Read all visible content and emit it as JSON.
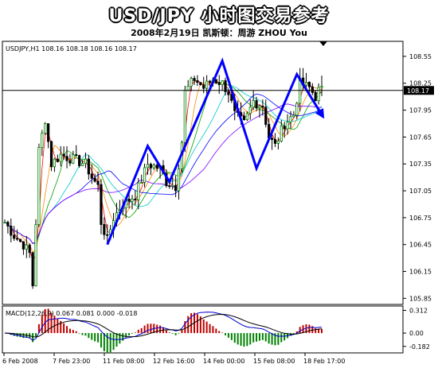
{
  "header": {
    "title": "USD/JPY 小时图交易参考",
    "subtitle": "2008年2月19日   凯斯顿：周游 ZHOU You"
  },
  "chart_data": [
    {
      "type": "candlestick",
      "legend": "USDJPY,H1  108.16 108.18 108.16 108.17",
      "price_label": "108.17",
      "current_price": 108.17,
      "ylim": [
        105.8,
        108.7
      ],
      "y_ticks": [
        "108.55",
        "108.25",
        "107.95",
        "107.65",
        "107.35",
        "107.05",
        "106.75",
        "106.45",
        "106.15",
        "105.85"
      ],
      "x_ticks": [
        "6 Feb 2008",
        "7 Feb 23:00",
        "11 Feb 08:00",
        "12 Feb 16:00",
        "14 Feb 00:00",
        "15 Feb 08:00",
        "18 Feb 17:00"
      ],
      "price_path": [
        [
          0,
          106.7
        ],
        [
          3,
          106.55
        ],
        [
          6,
          106.45
        ],
        [
          8,
          106.35
        ],
        [
          9,
          106.0
        ],
        [
          10,
          106.7
        ],
        [
          11,
          107.5
        ],
        [
          13,
          107.85
        ],
        [
          15,
          107.35
        ],
        [
          18,
          107.45
        ],
        [
          22,
          107.4
        ],
        [
          26,
          107.35
        ],
        [
          28,
          107.2
        ],
        [
          30,
          107.1
        ],
        [
          31,
          106.7
        ],
        [
          33,
          106.5
        ],
        [
          35,
          106.75
        ],
        [
          38,
          106.9
        ],
        [
          42,
          107.0
        ],
        [
          46,
          107.35
        ],
        [
          50,
          107.3
        ],
        [
          52,
          107.15
        ],
        [
          55,
          107.1
        ],
        [
          57,
          107.6
        ],
        [
          58,
          108.15
        ],
        [
          61,
          108.3
        ],
        [
          64,
          108.2
        ],
        [
          67,
          108.3
        ],
        [
          70,
          108.25
        ],
        [
          72,
          108.15
        ],
        [
          74,
          107.9
        ],
        [
          77,
          107.8
        ],
        [
          80,
          108.05
        ],
        [
          83,
          108.0
        ],
        [
          85,
          107.65
        ],
        [
          87,
          107.55
        ],
        [
          90,
          107.8
        ],
        [
          93,
          107.9
        ],
        [
          95,
          108.25
        ],
        [
          98,
          108.2
        ],
        [
          100,
          108.1
        ],
        [
          101,
          108.17
        ]
      ],
      "analysis_path": [
        [
          33,
          106.45
        ],
        [
          46,
          107.55
        ],
        [
          53,
          107.15
        ],
        [
          70,
          108.5
        ],
        [
          81,
          107.3
        ],
        [
          94,
          108.35
        ],
        [
          102,
          107.9
        ]
      ],
      "macd": {
        "legend": "MACD(12,26,9) 0.067 0.081 0.000 -0.018",
        "ylim": [
          -0.25,
          0.35
        ],
        "y_ticks": [
          "0.312",
          "0.00",
          "-0.182"
        ]
      }
    }
  ]
}
